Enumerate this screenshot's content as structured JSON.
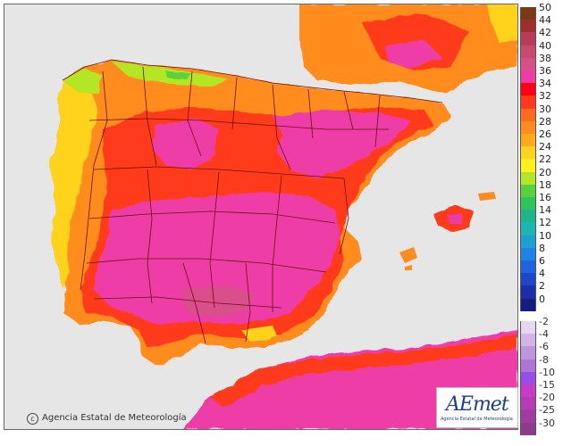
{
  "map": {
    "region": "Iberian Peninsula and Balearic Islands",
    "sea_color": "#e6e6e6"
  },
  "copyright": {
    "symbol": "c",
    "text": "Agencia Estatal de Meteorología"
  },
  "logo": {
    "main": "AEmet",
    "sub": "Agencia Estatal de Meteorología"
  },
  "legend": {
    "upper": [
      {
        "label": "50",
        "color": "#7a3a14"
      },
      {
        "label": "44",
        "color": "#9e2f2f"
      },
      {
        "label": "42",
        "color": "#b83c5a"
      },
      {
        "label": "40",
        "color": "#c84a72"
      },
      {
        "label": "38",
        "color": "#d8508a"
      },
      {
        "label": "36",
        "color": "#ee3ca6"
      },
      {
        "label": "34",
        "color": "#ff0014"
      },
      {
        "label": "32",
        "color": "#ff3a1c"
      },
      {
        "label": "30",
        "color": "#ff6a1e"
      },
      {
        "label": "28",
        "color": "#ff8c1e"
      },
      {
        "label": "26",
        "color": "#ffa81e"
      },
      {
        "label": "24",
        "color": "#ffd21e"
      },
      {
        "label": "22",
        "color": "#fff01e"
      },
      {
        "label": "20",
        "color": "#b4e628"
      },
      {
        "label": "18",
        "color": "#58d23c"
      },
      {
        "label": "16",
        "color": "#2ec45a"
      },
      {
        "label": "14",
        "color": "#1eb48c"
      },
      {
        "label": "12",
        "color": "#1eb4b4"
      },
      {
        "label": "10",
        "color": "#1e9ed2"
      },
      {
        "label": "8",
        "color": "#1e82e6"
      },
      {
        "label": "6",
        "color": "#1e64dc"
      },
      {
        "label": "4",
        "color": "#1e46c8"
      },
      {
        "label": "2",
        "color": "#1e2ea8"
      },
      {
        "label": "0",
        "color": "#141e82"
      }
    ],
    "lower": [
      {
        "label": "-2",
        "color": "#e6d6f0"
      },
      {
        "label": "-4",
        "color": "#d2b4e6"
      },
      {
        "label": "-6",
        "color": "#be96dc"
      },
      {
        "label": "-8",
        "color": "#aa78d2"
      },
      {
        "label": "-10",
        "color": "#9650e6"
      },
      {
        "label": "-15",
        "color": "#c83cc8"
      },
      {
        "label": "-20",
        "color": "#b43cb4"
      },
      {
        "label": "-25",
        "color": "#a03ca0"
      },
      {
        "label": "-30",
        "color": "#8c3c8c"
      }
    ]
  }
}
